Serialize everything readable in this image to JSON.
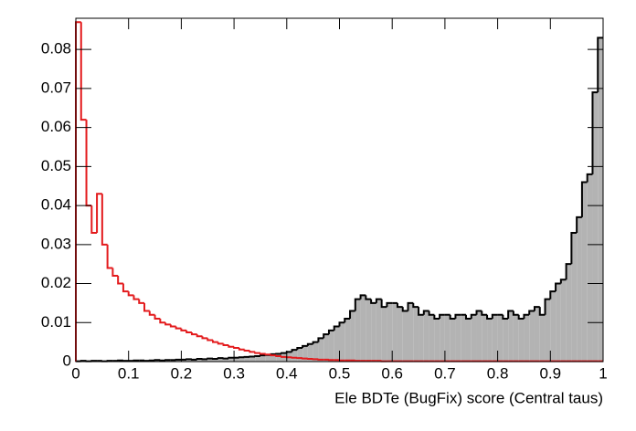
{
  "chart_data": {
    "type": "histogram",
    "x_label": "Ele BDTe (BugFix) score (Central taus)",
    "bins": [
      0,
      0.01,
      0.02,
      0.03,
      0.04,
      0.05,
      0.06,
      0.07,
      0.08,
      0.09,
      0.1,
      0.11,
      0.12,
      0.13,
      0.14,
      0.15,
      0.16,
      0.17,
      0.18,
      0.19,
      0.2,
      0.21,
      0.22,
      0.23,
      0.24,
      0.25,
      0.26,
      0.27,
      0.28,
      0.29,
      0.3,
      0.31,
      0.32,
      0.33,
      0.34,
      0.35,
      0.36,
      0.37,
      0.38,
      0.39,
      0.4,
      0.41,
      0.42,
      0.43,
      0.44,
      0.45,
      0.46,
      0.47,
      0.48,
      0.49,
      0.5,
      0.51,
      0.52,
      0.53,
      0.54,
      0.55,
      0.56,
      0.57,
      0.58,
      0.59,
      0.6,
      0.61,
      0.62,
      0.63,
      0.64,
      0.65,
      0.66,
      0.67,
      0.68,
      0.69,
      0.7,
      0.71,
      0.72,
      0.73,
      0.74,
      0.75,
      0.76,
      0.77,
      0.78,
      0.79,
      0.8,
      0.81,
      0.82,
      0.83,
      0.84,
      0.85,
      0.86,
      0.87,
      0.88,
      0.89,
      0.9,
      0.91,
      0.92,
      0.93,
      0.94,
      0.95,
      0.96,
      0.97,
      0.98,
      0.99,
      1
    ],
    "series": [
      {
        "color": "#000000",
        "fill": "#b3b3b3",
        "values": [
          0.0001,
          0.0002,
          0.0001,
          0.0002,
          0.0002,
          0.0001,
          0.0002,
          0.0002,
          0.0003,
          0.0002,
          0.0002,
          0.0003,
          0.0003,
          0.0002,
          0.0003,
          0.0004,
          0.0003,
          0.0004,
          0.0004,
          0.0005,
          0.0005,
          0.0006,
          0.0005,
          0.0007,
          0.0006,
          0.0008,
          0.0007,
          0.0009,
          0.0008,
          0.001,
          0.001,
          0.0011,
          0.0012,
          0.0013,
          0.0014,
          0.0016,
          0.0017,
          0.0019,
          0.002,
          0.0022,
          0.0025,
          0.003,
          0.0035,
          0.004,
          0.0045,
          0.005,
          0.006,
          0.007,
          0.008,
          0.009,
          0.01,
          0.011,
          0.013,
          0.016,
          0.017,
          0.016,
          0.015,
          0.016,
          0.014,
          0.015,
          0.015,
          0.014,
          0.013,
          0.015,
          0.014,
          0.012,
          0.013,
          0.012,
          0.011,
          0.012,
          0.012,
          0.011,
          0.012,
          0.012,
          0.011,
          0.012,
          0.013,
          0.012,
          0.011,
          0.012,
          0.012,
          0.011,
          0.013,
          0.012,
          0.011,
          0.012,
          0.013,
          0.014,
          0.012,
          0.016,
          0.018,
          0.02,
          0.021,
          0.025,
          0.033,
          0.037,
          0.046,
          0.048,
          0.069,
          0.083
        ]
      },
      {
        "color": "#e31a1c",
        "values": [
          0.087,
          0.062,
          0.04,
          0.033,
          0.043,
          0.03,
          0.024,
          0.022,
          0.02,
          0.018,
          0.017,
          0.016,
          0.015,
          0.013,
          0.012,
          0.011,
          0.01,
          0.0095,
          0.009,
          0.0085,
          0.008,
          0.0075,
          0.007,
          0.0065,
          0.006,
          0.0055,
          0.005,
          0.0046,
          0.0042,
          0.0038,
          0.0035,
          0.0031,
          0.0028,
          0.0025,
          0.0022,
          0.002,
          0.0018,
          0.0016,
          0.0014,
          0.0012,
          0.0011,
          0.001,
          0.0009,
          0.0008,
          0.0007,
          0.0006,
          0.0005,
          0.0005,
          0.0004,
          0.0004,
          0.0003,
          0.0003,
          0.0003,
          0.0002,
          0.0002,
          0.0002,
          0.0002,
          0.0002,
          0.0001,
          0.0001,
          0.0001,
          0.0001,
          0.0001,
          0.0001,
          0.0001,
          0.0001,
          0.0001,
          0.0001,
          0.0001,
          0.0001,
          0.0001,
          0.0001,
          0.0001,
          0.0001,
          0.0001,
          0.0001,
          0.0001,
          0.0001,
          0.0001,
          0.0001,
          0.0001,
          0.0001,
          0.0001,
          0.0001,
          0.0001,
          0.0001,
          0.0001,
          0.0001,
          0.0001,
          0.0001,
          0.0001,
          0.0001,
          0.0001,
          0.0001,
          0.0001,
          0.0001,
          0.0001,
          0.0001,
          0.0001,
          0.0001
        ]
      }
    ],
    "xlim": [
      0,
      1
    ],
    "ylim": [
      0,
      0.088
    ],
    "xticks": [
      0,
      0.1,
      0.2,
      0.3,
      0.4,
      0.5,
      0.6,
      0.7,
      0.8,
      0.9,
      1
    ],
    "yticks": [
      0,
      0.01,
      0.02,
      0.03,
      0.04,
      0.05,
      0.06,
      0.07,
      0.08
    ]
  }
}
